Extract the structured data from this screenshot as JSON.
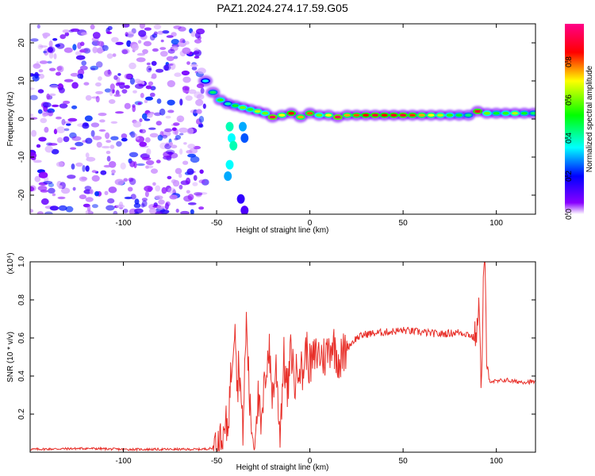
{
  "title": "PAZ1.2024.274.17.59.G05",
  "chart_data": [
    {
      "type": "heatmap",
      "xlabel": "Height of straight line (km)",
      "ylabel": "Frequency (Hz)",
      "xlim": [
        -150,
        121
      ],
      "ylim": [
        -25,
        25
      ],
      "xticks": [
        -100,
        -50,
        0,
        50,
        100
      ],
      "yticks": [
        -20,
        -10,
        0,
        10,
        20
      ],
      "grid": false,
      "colorbar": {
        "label": "Normalized spectral amplitude",
        "ticks": [
          "0.0",
          "0.2",
          "0.4",
          "0.6",
          "0.8"
        ],
        "range": [
          0,
          1
        ],
        "colors": [
          "#ffffff",
          "#8800ff",
          "#0000ff",
          "#00ffff",
          "#00ff00",
          "#ffff00",
          "#ff0000",
          "#ff0088"
        ]
      },
      "ridge": [
        {
          "x": -56,
          "y": 10,
          "v": 0.35
        },
        {
          "x": -52,
          "y": 7,
          "v": 0.45
        },
        {
          "x": -48,
          "y": 5,
          "v": 0.55
        },
        {
          "x": -44,
          "y": 4,
          "v": 0.4
        },
        {
          "x": -40,
          "y": 3.5,
          "v": 0.5
        },
        {
          "x": -36,
          "y": 3,
          "v": 0.6
        },
        {
          "x": -32,
          "y": 2.5,
          "v": 0.55
        },
        {
          "x": -28,
          "y": 2,
          "v": 0.65
        },
        {
          "x": -24,
          "y": 1.5,
          "v": 0.6
        },
        {
          "x": -20,
          "y": 0.5,
          "v": 0.95
        },
        {
          "x": -15,
          "y": 1,
          "v": 0.7
        },
        {
          "x": -10,
          "y": 1.5,
          "v": 0.85
        },
        {
          "x": -5,
          "y": 0.5,
          "v": 0.75
        },
        {
          "x": 0,
          "y": 1.5,
          "v": 0.8
        },
        {
          "x": 5,
          "y": 1,
          "v": 0.6
        },
        {
          "x": 10,
          "y": 1,
          "v": 0.7
        },
        {
          "x": 15,
          "y": 0.5,
          "v": 0.95
        },
        {
          "x": 20,
          "y": 1,
          "v": 0.75
        },
        {
          "x": 25,
          "y": 1,
          "v": 0.8
        },
        {
          "x": 30,
          "y": 1,
          "v": 0.85
        },
        {
          "x": 35,
          "y": 1,
          "v": 0.9
        },
        {
          "x": 40,
          "y": 1,
          "v": 0.85
        },
        {
          "x": 45,
          "y": 1,
          "v": 0.88
        },
        {
          "x": 50,
          "y": 1,
          "v": 0.9
        },
        {
          "x": 55,
          "y": 1,
          "v": 0.82
        },
        {
          "x": 60,
          "y": 1,
          "v": 0.75
        },
        {
          "x": 65,
          "y": 1,
          "v": 0.7
        },
        {
          "x": 70,
          "y": 1,
          "v": 0.65
        },
        {
          "x": 75,
          "y": 1,
          "v": 0.55
        },
        {
          "x": 80,
          "y": 1,
          "v": 0.5
        },
        {
          "x": 85,
          "y": 1,
          "v": 0.45
        },
        {
          "x": 90,
          "y": 2,
          "v": 0.9
        },
        {
          "x": 95,
          "y": 1.5,
          "v": 0.6
        },
        {
          "x": 100,
          "y": 1.5,
          "v": 0.5
        },
        {
          "x": 105,
          "y": 1.5,
          "v": 0.55
        },
        {
          "x": 110,
          "y": 1.5,
          "v": 0.65
        },
        {
          "x": 115,
          "y": 1.5,
          "v": 0.5
        },
        {
          "x": 120,
          "y": 1.5,
          "v": 0.45
        }
      ],
      "tail": [
        {
          "x": -43,
          "y": -2,
          "v": 0.4
        },
        {
          "x": -42,
          "y": -5,
          "v": 0.35
        },
        {
          "x": -41,
          "y": -7,
          "v": 0.4
        },
        {
          "x": -43,
          "y": -12,
          "v": 0.35
        },
        {
          "x": -44,
          "y": -15,
          "v": 0.3
        },
        {
          "x": -36,
          "y": -2,
          "v": 0.3
        },
        {
          "x": -35,
          "y": -5,
          "v": 0.25
        },
        {
          "x": -37,
          "y": -21,
          "v": 0.15
        },
        {
          "x": -35,
          "y": -24,
          "v": 0.12
        }
      ]
    },
    {
      "type": "line",
      "xlabel": "Height of straight line (km)",
      "ylabel": "SNR (10 * v/v)",
      "yscale_label": "(x10⁴)",
      "xlim": [
        -150,
        121
      ],
      "ylim": [
        0,
        1.0
      ],
      "xticks": [
        -100,
        -50,
        0,
        50,
        100
      ],
      "yticks": [
        0.2,
        0.4,
        0.6,
        0.8,
        1.0
      ],
      "ytick_labels": [
        "0.2",
        "0.4",
        "0.6",
        "0.8",
        "1.0"
      ],
      "grid": false,
      "color": "#e8302a",
      "x": [
        -150,
        -120,
        -100,
        -80,
        -60,
        -52,
        -48,
        -44,
        -42,
        -40,
        -39,
        -38,
        -36,
        -34,
        -32,
        -30,
        -28,
        -26,
        -24,
        -22,
        -20,
        -18,
        -16,
        -14,
        -12,
        -10,
        -8,
        -6,
        -4,
        -2,
        0,
        4,
        8,
        12,
        16,
        20,
        25,
        30,
        40,
        50,
        60,
        70,
        80,
        85,
        88,
        90,
        91,
        92,
        93,
        94,
        95,
        100,
        105,
        110,
        115,
        121
      ],
      "y": [
        0.015,
        0.02,
        0.015,
        0.015,
        0.015,
        0.02,
        0.05,
        0.15,
        0.45,
        0.75,
        0.3,
        0.5,
        0.1,
        0.7,
        0.2,
        0.05,
        0.3,
        0.1,
        0.4,
        0.55,
        0.3,
        0.45,
        0.1,
        0.5,
        0.3,
        0.55,
        0.35,
        0.5,
        0.4,
        0.55,
        0.45,
        0.52,
        0.5,
        0.58,
        0.48,
        0.55,
        0.6,
        0.62,
        0.63,
        0.64,
        0.63,
        0.62,
        0.63,
        0.62,
        0.6,
        0.65,
        0.8,
        0.3,
        0.9,
        1.0,
        0.38,
        0.37,
        0.38,
        0.37,
        0.37,
        0.37
      ]
    }
  ]
}
